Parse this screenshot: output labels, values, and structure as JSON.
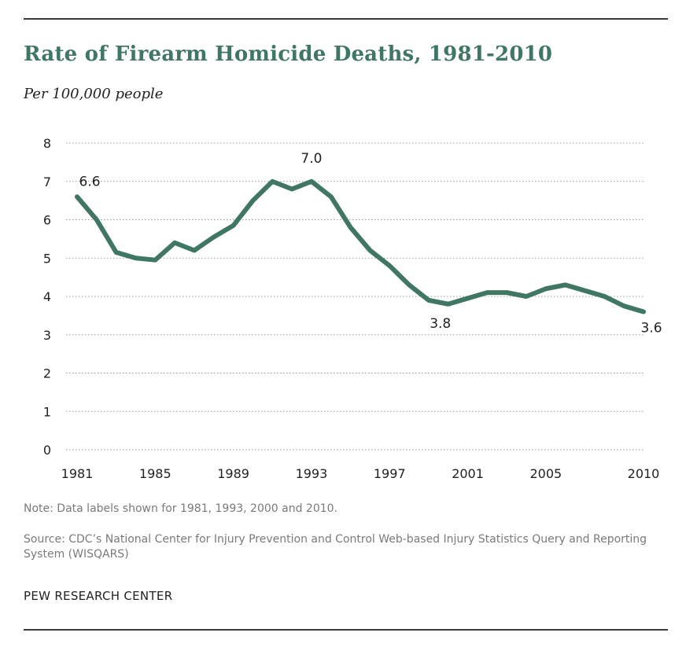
{
  "title": "Rate of Firearm Homicide Deaths, 1981-2010",
  "subtitle": "Per 100,000 people",
  "note": "Note: Data labels shown for 1981, 1993, 2000 and 2010.",
  "source": "Source: CDC’s  National Center for Injury  Prevention and Control Web-based Injury Statistics Query and Reporting System (WISQARS)",
  "brand": "PEW RESEARCH  CENTER",
  "colors": {
    "line": "#3f7763",
    "title": "#3f7763",
    "grid": "#9a9a9a",
    "rule": "#3a3a3a"
  },
  "chart_data": {
    "type": "line",
    "title": "Rate of Firearm Homicide Deaths, 1981-2010",
    "ylabel": "Per 100,000 people",
    "xlabel": "",
    "ylim": [
      0,
      8
    ],
    "yticks": [
      0,
      1,
      2,
      3,
      4,
      5,
      6,
      7,
      8
    ],
    "xticks": [
      1981,
      1985,
      1989,
      1993,
      1997,
      2001,
      2005,
      2010
    ],
    "grid": "horizontal dotted",
    "series": [
      {
        "x": [
          1981,
          1982,
          1983,
          1984,
          1985,
          1986,
          1987,
          1988,
          1989,
          1990,
          1991,
          1992,
          1993,
          1994,
          1995,
          1996,
          1997,
          1998,
          1999,
          2000,
          2001,
          2002,
          2003,
          2004,
          2005,
          2006,
          2007,
          2008,
          2009,
          2010
        ],
        "y": [
          6.6,
          6.0,
          5.15,
          5.0,
          4.95,
          5.4,
          5.2,
          5.55,
          5.85,
          6.5,
          7.0,
          6.8,
          7.0,
          6.6,
          5.8,
          5.2,
          4.8,
          4.3,
          3.9,
          3.8,
          3.95,
          4.1,
          4.1,
          4.0,
          4.2,
          4.3,
          4.15,
          4.0,
          3.75,
          3.6
        ]
      }
    ],
    "data_labels": [
      {
        "x": 1981,
        "text": "6.6"
      },
      {
        "x": 1993,
        "text": "7.0"
      },
      {
        "x": 2000,
        "text": "3.8"
      },
      {
        "x": 2010,
        "text": "3.6"
      }
    ]
  }
}
